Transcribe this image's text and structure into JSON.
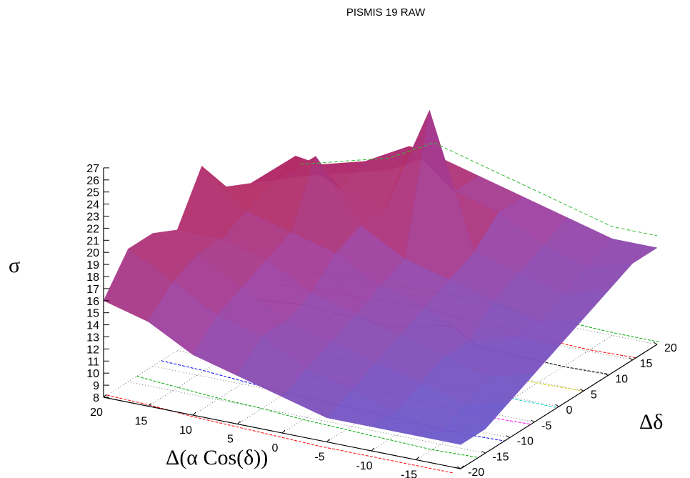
{
  "chart_data": {
    "type": "surface",
    "title": "PISMIS 19 RAW",
    "xlabel": "Δ(α Cos(δ))",
    "ylabel": "Δδ",
    "zlabel": "σ",
    "xlim": [
      20,
      -20
    ],
    "ylim": [
      -20,
      20
    ],
    "zlim": [
      8,
      27
    ],
    "x_ticks": [
      "20",
      "15",
      "10",
      "5",
      "0",
      "-5",
      "-10",
      "-15",
      "-20"
    ],
    "y_ticks": [
      "-20",
      "-15",
      "-10",
      "-5",
      "0",
      "5",
      "10",
      "15",
      "20"
    ],
    "z_ticks": [
      "8",
      "9",
      "10",
      "11",
      "12",
      "13",
      "14",
      "15",
      "16",
      "17",
      "18",
      "19",
      "20",
      "21",
      "22",
      "23",
      "24",
      "25",
      "26",
      "27"
    ],
    "grid": true,
    "surface_colors": {
      "high": "#c41e3a",
      "mid": "#a040a0",
      "low": "#6a5acd"
    },
    "contour_colors": [
      "#ff0000",
      "#00aa00",
      "#0000ff",
      "#ff00ff",
      "#00cccc",
      "#cccc00",
      "#000000"
    ],
    "x": [
      20,
      15,
      10,
      5,
      0,
      -5,
      -10,
      -15,
      -20
    ],
    "y": [
      -20,
      -15,
      -10,
      -5,
      0,
      5,
      10,
      15,
      20
    ],
    "z": [
      [
        16,
        15,
        13,
        12,
        11,
        10,
        10,
        10,
        10
      ],
      [
        19,
        17,
        15,
        14,
        12,
        11,
        10,
        9,
        10
      ],
      [
        19,
        18,
        16,
        14,
        13,
        12,
        11,
        10,
        11
      ],
      [
        18,
        18,
        17,
        15,
        14,
        13,
        12,
        11,
        12
      ],
      [
        22,
        19,
        18,
        17,
        15,
        14,
        12,
        13,
        13
      ],
      [
        19,
        20,
        23,
        18,
        16,
        15,
        14,
        13,
        14
      ],
      [
        18,
        21,
        19,
        18,
        27,
        16,
        15,
        14,
        15
      ],
      [
        17,
        19,
        20,
        22,
        19,
        18,
        16,
        15,
        16
      ],
      [
        16,
        17,
        18,
        20,
        19,
        18,
        17,
        16,
        16
      ]
    ]
  }
}
